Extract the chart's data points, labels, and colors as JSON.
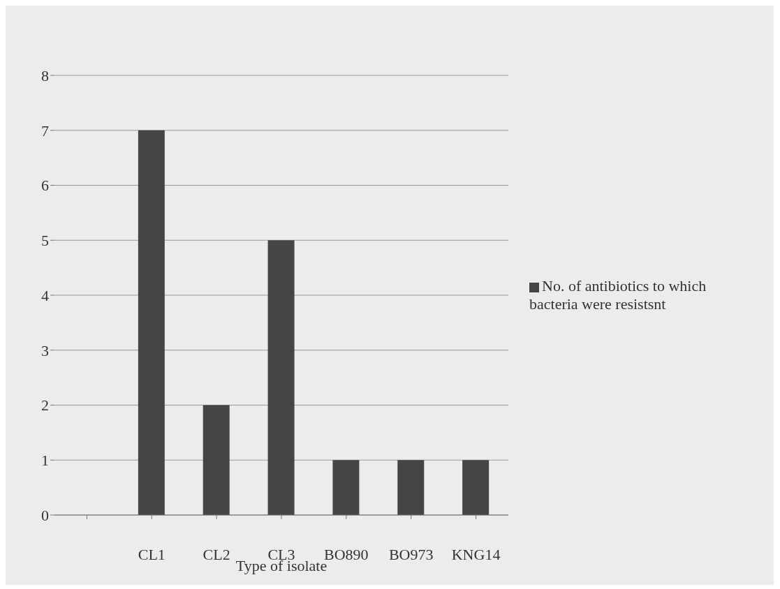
{
  "chart_data": {
    "type": "bar",
    "xlabel": "Type of isolate",
    "categories": [
      null,
      "CL1",
      "CL2",
      "CL3",
      "BO890",
      "BO973",
      "KNG14"
    ],
    "series": [
      {
        "name": "No. of antibiotics to which bacteria were resistsnt",
        "color": "#454545",
        "values": [
          null,
          7,
          2,
          5,
          1,
          1,
          1
        ]
      }
    ],
    "ylim": [
      0,
      8
    ],
    "yticks": [
      0,
      1,
      2,
      3,
      4,
      5,
      6,
      7,
      8
    ],
    "grid": "y",
    "legend": "right"
  }
}
